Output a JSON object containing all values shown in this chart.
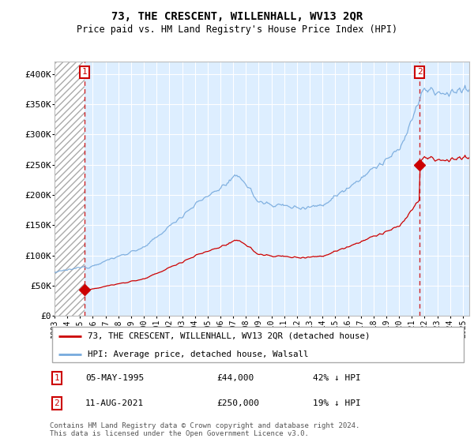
{
  "title": "73, THE CRESCENT, WILLENHALL, WV13 2QR",
  "subtitle": "Price paid vs. HM Land Registry's House Price Index (HPI)",
  "hpi_label": "HPI: Average price, detached house, Walsall",
  "price_label": "73, THE CRESCENT, WILLENHALL, WV13 2QR (detached house)",
  "transaction1_date": "05-MAY-1995",
  "transaction1_price": 44000,
  "transaction1_note": "42% ↓ HPI",
  "transaction2_date": "11-AUG-2021",
  "transaction2_price": 250000,
  "transaction2_note": "19% ↓ HPI",
  "footnote": "Contains HM Land Registry data © Crown copyright and database right 2024.\nThis data is licensed under the Open Government Licence v3.0.",
  "plot_bg": "#ddeeff",
  "grid_color": "#ffffff",
  "hpi_line_color": "#77aadd",
  "price_line_color": "#cc0000",
  "marker_color": "#cc0000",
  "dashed_color": "#cc0000",
  "label_border_color": "#cc0000",
  "ylim": [
    0,
    420000
  ],
  "ytick_vals": [
    0,
    50000,
    100000,
    150000,
    200000,
    250000,
    300000,
    350000,
    400000
  ],
  "ytick_labels": [
    "£0",
    "£50K",
    "£100K",
    "£150K",
    "£200K",
    "£250K",
    "£300K",
    "£350K",
    "£400K"
  ],
  "xstart": 1993,
  "xend": 2025.5,
  "t1_year": 1995.37,
  "t2_year": 2021.62,
  "t1_price": 44000,
  "t2_price": 250000
}
